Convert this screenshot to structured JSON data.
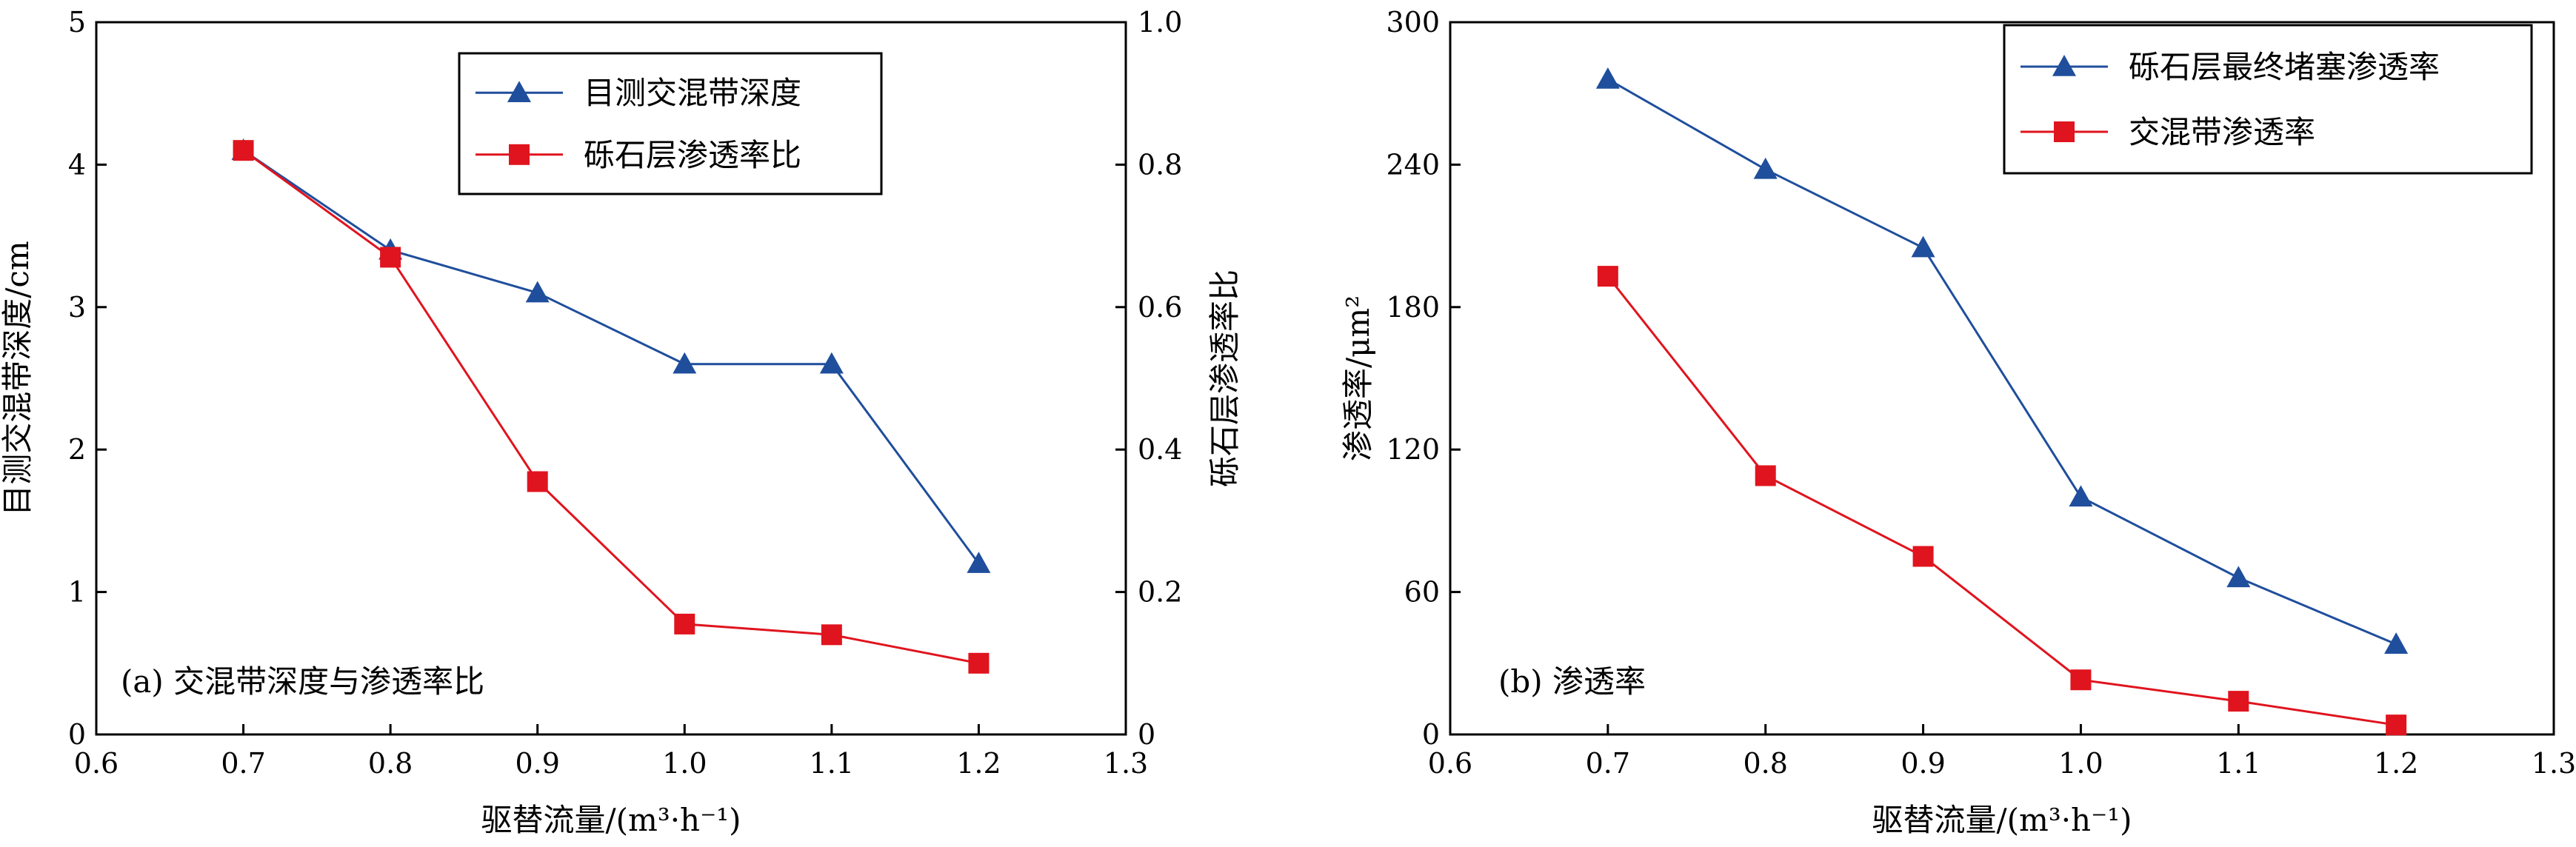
{
  "chart_data": [
    {
      "type": "line",
      "panel_label": "(a) 交混带深度与渗透率比",
      "xlabel": "驱替流量/(m³·h⁻¹)",
      "ylabel": "目测交混带深度/cm",
      "ylabel_right": "砾石层渗透率比",
      "xlim": [
        0.6,
        1.3
      ],
      "ylim": [
        0,
        5
      ],
      "ylim_right": [
        0,
        1.0
      ],
      "xticks": [
        "0.6",
        "0.7",
        "0.8",
        "0.9",
        "1.0",
        "1.1",
        "1.2",
        "1.3"
      ],
      "yticks": [
        "0",
        "1",
        "2",
        "3",
        "4",
        "5"
      ],
      "yticks_right": [
        "0",
        "0.2",
        "0.4",
        "0.6",
        "0.8",
        "1.0"
      ],
      "grid": false,
      "legend_position": "top-right",
      "x": [
        0.7,
        0.8,
        0.9,
        1.0,
        1.1,
        1.2
      ],
      "series": [
        {
          "name": "目测交混带深度",
          "axis": "left",
          "color": "#1f4e9c",
          "marker": "triangle",
          "values": [
            4.1,
            3.4,
            3.1,
            2.6,
            2.6,
            1.2
          ]
        },
        {
          "name": "砾石层渗透率比",
          "axis": "right",
          "color": "#e0141e",
          "marker": "square",
          "values": [
            0.82,
            0.67,
            0.355,
            0.155,
            0.14,
            0.1
          ]
        }
      ]
    },
    {
      "type": "line",
      "panel_label": "(b) 渗透率",
      "xlabel": "驱替流量/(m³·h⁻¹)",
      "ylabel": "渗透率/μm²",
      "xlim": [
        0.6,
        1.3
      ],
      "ylim": [
        0,
        300
      ],
      "xticks": [
        "0.6",
        "0.7",
        "0.8",
        "0.9",
        "1.0",
        "1.1",
        "1.2",
        "1.3"
      ],
      "yticks": [
        "0",
        "60",
        "120",
        "180",
        "240",
        "300"
      ],
      "grid": false,
      "legend_position": "top-right",
      "x": [
        0.7,
        0.8,
        0.9,
        1.0,
        1.1,
        1.2
      ],
      "series": [
        {
          "name": "砾石层最终堵塞渗透率",
          "axis": "left",
          "color": "#1f4e9c",
          "marker": "triangle",
          "values": [
            276,
            238,
            205,
            100,
            66,
            38
          ]
        },
        {
          "name": "交混带渗透率",
          "axis": "left",
          "color": "#e0141e",
          "marker": "square",
          "values": [
            193,
            109,
            75,
            23,
            14,
            4
          ]
        }
      ]
    }
  ]
}
